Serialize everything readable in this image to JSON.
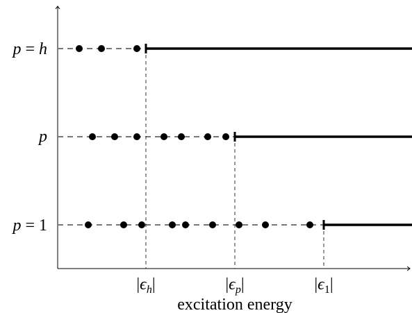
{
  "rows": [
    {
      "label": {
        "var": "p",
        "rest": " = ",
        "val": "h"
      }
    },
    {
      "label": {
        "var": "p"
      }
    },
    {
      "label": {
        "var": "p",
        "rest": " = ",
        "val": "1"
      }
    }
  ],
  "x_labels": [
    {
      "open": "|",
      "symbol": "ϵ",
      "sub": "h",
      "close": "|"
    },
    {
      "open": "|",
      "symbol": "ϵ",
      "sub": "p",
      "close": "|"
    },
    {
      "open": "|",
      "symbol": "ϵ",
      "sub": "1",
      "close": "|"
    }
  ],
  "x_axis_label": "excitation energy"
}
